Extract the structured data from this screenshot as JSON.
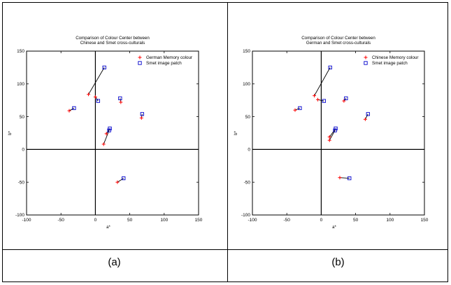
{
  "panels": [
    {
      "caption": "(a)",
      "chart_data": {
        "type": "scatter",
        "title": [
          "Comparison of Colour Center between",
          "Chinese and Smet cross-culturals"
        ],
        "xlabel": "a*",
        "ylabel": "b*",
        "xlim": [
          -100,
          150
        ],
        "ylim": [
          -100,
          150
        ],
        "xticks": [
          -100,
          -50,
          0,
          50,
          100,
          150
        ],
        "yticks": [
          -100,
          -50,
          0,
          50,
          100,
          150
        ],
        "grid": false,
        "legend_position": "top-right",
        "series": [
          {
            "name": "German Memory colour",
            "marker": "plus",
            "color": "#ff0000",
            "points": [
              [
                -10,
                84
              ],
              [
                0,
                80
              ],
              [
                37,
                72
              ],
              [
                67,
                48
              ],
              [
                -38,
                59
              ],
              [
                16,
                24
              ],
              [
                12,
                8
              ],
              [
                32,
                -50
              ]
            ]
          },
          {
            "name": "Smet image patch",
            "marker": "square",
            "color": "#0000cc",
            "points": [
              [
                13,
                125
              ],
              [
                4,
                74
              ],
              [
                36,
                78
              ],
              [
                68,
                54
              ],
              [
                -31,
                63
              ],
              [
                21,
                32
              ],
              [
                20,
                29
              ],
              [
                41,
                -44
              ]
            ]
          }
        ]
      }
    },
    {
      "caption": "(b)",
      "chart_data": {
        "type": "scatter",
        "title": [
          "Comparison of Colour Center between",
          "German and Smet cross-culturals"
        ],
        "xlabel": "a*",
        "ylabel": "b*",
        "xlim": [
          -100,
          150
        ],
        "ylim": [
          -100,
          150
        ],
        "xticks": [
          -100,
          -50,
          0,
          50,
          100,
          150
        ],
        "yticks": [
          -100,
          -50,
          0,
          50,
          100,
          150
        ],
        "grid": false,
        "legend_position": "top-right",
        "series": [
          {
            "name": "Chinese Memory colour",
            "marker": "plus",
            "color": "#ff0000",
            "points": [
              [
                -10,
                82
              ],
              [
                -5,
                76
              ],
              [
                33,
                74
              ],
              [
                64,
                46
              ],
              [
                -38,
                60
              ],
              [
                12,
                19
              ],
              [
                12,
                14
              ],
              [
                27,
                -43
              ]
            ]
          },
          {
            "name": "Smet image patch",
            "marker": "square",
            "color": "#0000cc",
            "points": [
              [
                13,
                125
              ],
              [
                4,
                74
              ],
              [
                36,
                78
              ],
              [
                68,
                54
              ],
              [
                -31,
                63
              ],
              [
                21,
                32
              ],
              [
                20,
                29
              ],
              [
                41,
                -44
              ]
            ]
          }
        ]
      }
    }
  ]
}
